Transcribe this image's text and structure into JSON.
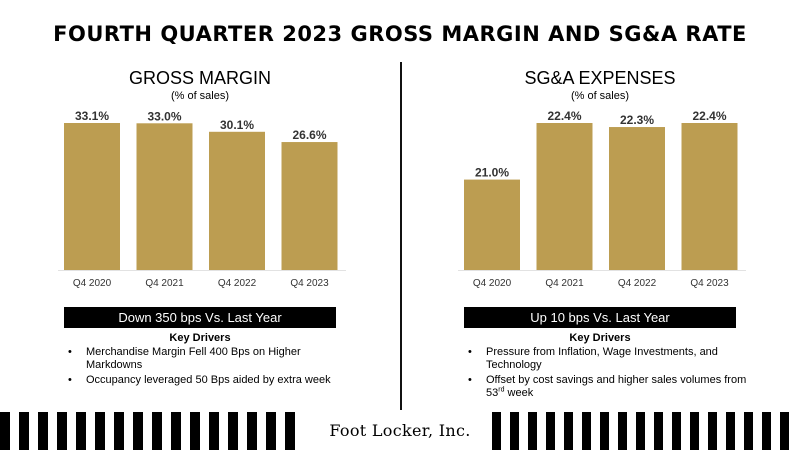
{
  "title": "FOURTH QUARTER 2023 GROSS MARGIN AND SG&A RATE",
  "colors": {
    "bar": "#BC9D51",
    "baseline": "#e2e2e2",
    "banner": "#000000"
  },
  "logo": {
    "text": "Foot Locker, Inc."
  },
  "chart_data": [
    {
      "type": "bar",
      "title": "GROSS MARGIN",
      "subtitle": "(% of sales)",
      "categories": [
        "Q4 2020",
        "Q4 2021",
        "Q4 2022",
        "Q4 2023"
      ],
      "values": [
        33.1,
        33.0,
        30.1,
        26.6
      ],
      "data_labels": [
        "33.1%",
        "33.0%",
        "30.1%",
        "26.6%"
      ],
      "ylim": [
        0,
        33.1
      ],
      "xlabel": "",
      "ylabel": "",
      "banner": "Down 350 bps Vs. Last Year",
      "drivers_title": "Key Drivers",
      "drivers": [
        {
          "text": "Merchandise Margin Fell 400 Bps on Higher Markdowns"
        },
        {
          "text": "Occupancy leveraged 50 Bps aided by extra week"
        }
      ]
    },
    {
      "type": "bar",
      "title": "SG&A EXPENSES",
      "subtitle": "(% of sales)",
      "categories": [
        "Q4 2020",
        "Q4 2021",
        "Q4 2022",
        "Q4 2023"
      ],
      "values": [
        21.0,
        22.4,
        22.3,
        22.4
      ],
      "data_labels": [
        "21.0%",
        "22.4%",
        "22.3%",
        "22.4%"
      ],
      "ylim": [
        20.0,
        22.4
      ],
      "xlabel": "",
      "ylabel": "",
      "banner": "Up 10 bps Vs. Last Year",
      "drivers_title": "Key Drivers",
      "drivers": [
        {
          "text": "Pressure from Inflation, Wage Investments, and Technology"
        },
        {
          "text": "Offset by cost savings and higher sales volumes from 53",
          "sup": "rd",
          "after": " week"
        }
      ]
    }
  ]
}
